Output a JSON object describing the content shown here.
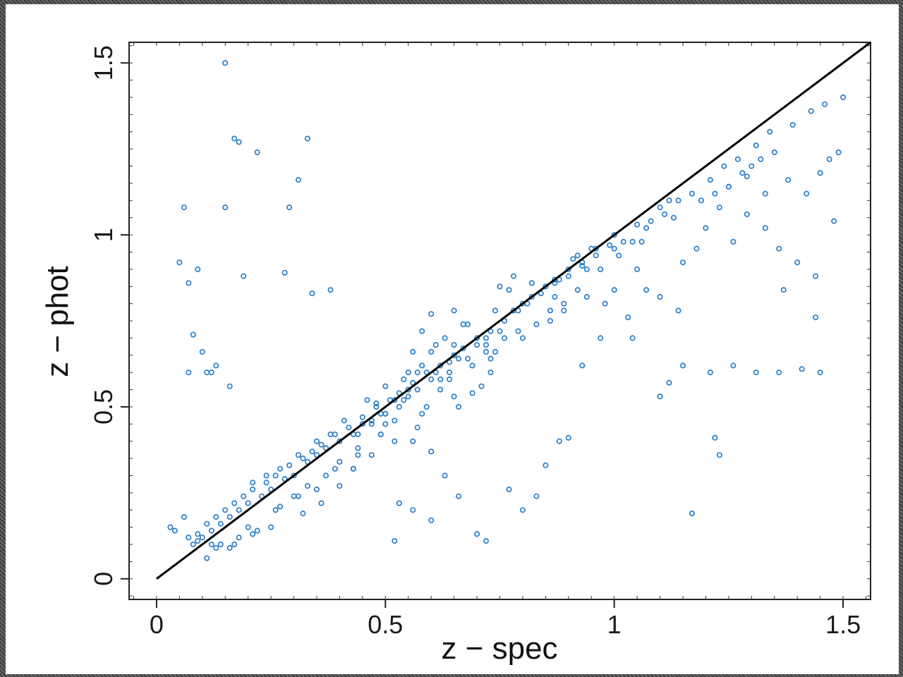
{
  "chart_data": {
    "type": "scatter",
    "title": "",
    "xlabel": "z − spec",
    "ylabel": "z − phot",
    "xlim": [
      -0.06,
      1.56
    ],
    "ylim": [
      -0.06,
      1.56
    ],
    "xticks": [
      0,
      0.5,
      1,
      1.5
    ],
    "yticks": [
      0,
      0.5,
      1,
      1.5
    ],
    "xtick_labels": [
      "0",
      "0.5",
      "1",
      "1.5"
    ],
    "ytick_labels": [
      "0",
      "0.5",
      "1",
      "1.5"
    ],
    "grid": false,
    "legend": "none",
    "marker": "open-circle",
    "point_color": "#1f78c8",
    "line_color": "#000000",
    "reference_line": {
      "x": [
        0,
        1.56
      ],
      "y": [
        0,
        1.56
      ]
    },
    "series": [
      {
        "x": [
          0.15,
          0.17,
          0.18,
          0.22,
          0.33,
          0.31,
          0.29,
          0.06,
          0.15,
          0.05,
          0.09,
          0.07,
          0.19,
          0.28,
          0.34,
          0.38,
          0.08,
          0.1,
          0.11,
          0.12,
          0.13,
          0.07,
          0.16,
          0.48,
          0.52,
          0.55,
          0.57,
          0.62,
          0.64,
          0.55,
          0.58,
          0.6,
          0.65,
          0.5,
          0.53,
          0.47,
          0.43,
          0.45,
          0.49,
          0.54,
          0.61,
          0.66,
          0.7,
          0.75,
          0.72,
          0.78,
          0.8,
          0.82,
          0.85,
          0.87,
          0.9,
          0.93,
          0.92,
          0.95,
          0.78,
          0.75,
          0.82,
          0.88,
          0.91,
          0.96,
          1.0,
          1.05,
          1.1,
          1.12,
          1.08,
          1.02,
          1.22,
          1.25,
          1.28,
          1.32,
          1.35,
          1.3,
          1.38,
          1.42,
          1.45,
          1.47,
          1.49,
          1.48,
          1.44,
          1.4,
          1.36,
          1.33,
          1.29,
          1.26,
          1.18,
          1.15,
          1.2,
          1.23,
          1.05,
          1.0,
          1.1,
          1.14,
          1.03,
          0.98,
          0.94,
          0.89,
          0.86,
          0.8,
          0.74,
          0.72,
          0.68,
          0.64,
          0.6,
          0.57,
          0.55,
          0.5,
          0.47,
          0.44,
          0.4,
          0.37,
          0.35,
          0.33,
          0.3,
          0.28,
          0.25,
          0.23,
          0.2,
          0.18,
          0.16,
          0.14,
          0.12,
          0.1,
          0.09,
          0.08,
          0.11,
          0.13,
          0.15,
          0.17,
          0.19,
          0.21,
          0.24,
          0.26,
          0.29,
          0.32,
          0.34,
          0.36,
          0.39,
          0.42,
          0.45,
          0.48,
          0.51,
          0.53,
          0.56,
          0.59,
          0.62,
          0.65,
          0.67,
          0.7,
          0.73,
          0.76,
          0.79,
          0.81,
          0.84,
          0.87,
          0.9,
          0.93,
          0.96,
          0.99,
          0.43,
          0.47,
          0.52,
          0.57,
          0.66,
          0.69,
          0.71,
          0.73,
          0.68,
          0.65,
          0.6,
          0.58,
          0.63,
          0.56,
          0.61,
          0.67,
          0.74,
          0.77,
          0.54,
          0.5,
          0.46,
          0.41,
          0.38,
          0.35,
          0.31,
          0.27,
          0.24,
          0.21,
          0.26,
          0.3,
          0.33,
          0.37,
          0.4,
          0.44,
          0.49,
          0.52,
          0.59,
          0.62,
          0.64,
          0.69,
          0.72,
          0.76,
          0.83,
          0.86,
          0.89,
          0.92,
          0.97,
          1.01,
          1.04,
          1.07,
          1.11,
          1.14,
          1.17,
          1.21,
          1.24,
          1.27,
          1.31,
          1.34,
          1.39,
          1.43,
          1.46,
          1.5,
          1.21,
          1.26,
          1.31,
          1.36,
          1.41,
          1.45,
          1.44,
          1.37,
          1.22,
          1.23,
          1.17,
          1.15,
          1.12,
          1.1,
          1.07,
          1.04,
          0.97,
          0.93,
          0.9,
          0.88,
          0.85,
          0.83,
          0.8,
          0.77,
          0.72,
          0.7,
          0.66,
          0.63,
          0.6,
          0.56,
          0.53,
          0.52,
          0.6,
          0.56,
          0.5,
          0.43,
          0.4,
          0.36,
          0.32,
          0.25,
          0.21,
          0.17,
          0.13,
          0.11,
          0.06,
          0.03,
          0.04,
          0.07,
          0.09,
          0.12,
          0.14,
          0.16,
          0.18,
          0.2,
          0.22,
          0.27,
          0.31,
          0.35,
          0.39,
          0.44,
          0.49,
          0.58,
          0.65,
          0.73,
          0.79,
          0.87,
          0.94,
          1.0,
          1.06,
          1.13,
          1.19,
          1.25,
          1.29,
          1.33
        ],
        "y": [
          1.5,
          1.28,
          1.27,
          1.24,
          1.28,
          1.16,
          1.08,
          1.08,
          1.08,
          0.92,
          0.9,
          0.86,
          0.88,
          0.89,
          0.83,
          0.84,
          0.71,
          0.66,
          0.6,
          0.6,
          0.62,
          0.6,
          0.56,
          0.51,
          0.52,
          0.55,
          0.6,
          0.58,
          0.63,
          0.6,
          0.62,
          0.66,
          0.68,
          0.48,
          0.5,
          0.45,
          0.42,
          0.45,
          0.48,
          0.52,
          0.6,
          0.64,
          0.68,
          0.72,
          0.7,
          0.78,
          0.8,
          0.82,
          0.85,
          0.87,
          0.9,
          0.92,
          0.94,
          0.96,
          0.88,
          0.85,
          0.86,
          0.87,
          0.93,
          0.96,
          1.0,
          1.03,
          1.08,
          1.1,
          1.04,
          0.98,
          1.12,
          1.14,
          1.18,
          1.22,
          1.24,
          1.2,
          1.16,
          1.12,
          1.18,
          1.22,
          1.24,
          1.04,
          0.88,
          0.92,
          0.96,
          1.02,
          1.06,
          0.98,
          0.96,
          0.92,
          1.02,
          1.08,
          0.9,
          0.84,
          0.82,
          0.78,
          0.76,
          0.8,
          0.82,
          0.78,
          0.75,
          0.7,
          0.66,
          0.68,
          0.64,
          0.6,
          0.58,
          0.55,
          0.53,
          0.48,
          0.46,
          0.42,
          0.4,
          0.38,
          0.36,
          0.34,
          0.3,
          0.29,
          0.26,
          0.24,
          0.22,
          0.2,
          0.18,
          0.16,
          0.14,
          0.12,
          0.11,
          0.1,
          0.16,
          0.18,
          0.2,
          0.22,
          0.24,
          0.26,
          0.28,
          0.3,
          0.33,
          0.35,
          0.37,
          0.39,
          0.42,
          0.44,
          0.47,
          0.5,
          0.52,
          0.54,
          0.57,
          0.6,
          0.62,
          0.65,
          0.67,
          0.7,
          0.72,
          0.75,
          0.78,
          0.8,
          0.83,
          0.86,
          0.88,
          0.91,
          0.94,
          0.97,
          0.32,
          0.36,
          0.4,
          0.44,
          0.5,
          0.54,
          0.56,
          0.6,
          0.74,
          0.78,
          0.77,
          0.72,
          0.7,
          0.66,
          0.68,
          0.74,
          0.78,
          0.84,
          0.58,
          0.56,
          0.52,
          0.46,
          0.42,
          0.4,
          0.36,
          0.32,
          0.3,
          0.28,
          0.2,
          0.24,
          0.27,
          0.3,
          0.34,
          0.38,
          0.42,
          0.46,
          0.5,
          0.55,
          0.58,
          0.62,
          0.66,
          0.7,
          0.74,
          0.78,
          0.8,
          0.84,
          0.9,
          0.94,
          0.98,
          1.02,
          1.06,
          1.1,
          1.12,
          1.16,
          1.2,
          1.22,
          1.26,
          1.3,
          1.32,
          1.36,
          1.38,
          1.4,
          0.6,
          0.62,
          0.6,
          0.6,
          0.61,
          0.6,
          0.76,
          0.84,
          0.41,
          0.36,
          0.19,
          0.62,
          0.57,
          0.53,
          0.84,
          0.7,
          0.7,
          0.62,
          0.41,
          0.4,
          0.33,
          0.24,
          0.2,
          0.26,
          0.11,
          0.13,
          0.24,
          0.3,
          0.17,
          0.2,
          0.22,
          0.11,
          0.37,
          0.4,
          0.45,
          0.32,
          0.27,
          0.22,
          0.19,
          0.15,
          0.13,
          0.1,
          0.09,
          0.06,
          0.18,
          0.15,
          0.14,
          0.12,
          0.13,
          0.1,
          0.1,
          0.09,
          0.12,
          0.15,
          0.14,
          0.21,
          0.24,
          0.26,
          0.32,
          0.36,
          0.42,
          0.48,
          0.53,
          0.64,
          0.72,
          0.82,
          0.9,
          0.96,
          0.98,
          1.05,
          1.1,
          1.14,
          1.17,
          1.12
        ]
      }
    ]
  }
}
